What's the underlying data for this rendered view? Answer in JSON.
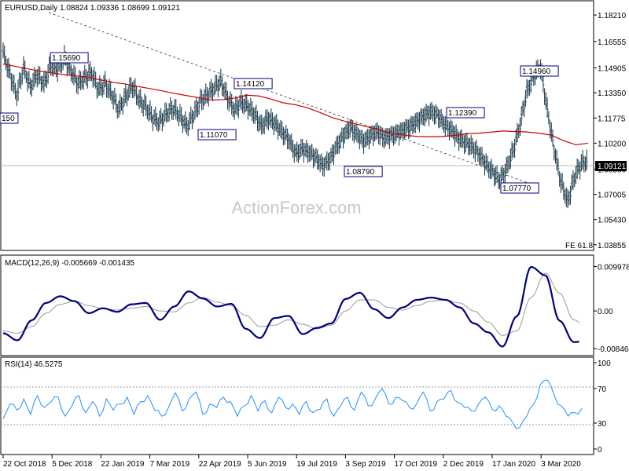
{
  "chart_data": [
    {
      "type": "ohlc",
      "title": "EURUSD,Daily",
      "ohlc_readout": "1.08824 1.09336 1.08699 1.09121",
      "watermark": "ActionForex.com",
      "y_ticks": [
        "1.18210",
        "1.16555",
        "1.14905",
        "1.13350",
        "1.11775",
        "1.10200",
        "1.08580",
        "1.07005",
        "1.05430",
        "1.03855"
      ],
      "last_price_label": "1.09121",
      "fe_label": "FE 61.8",
      "peak_labels": [
        {
          "text": "1.15690",
          "price": 1.1569
        },
        {
          "text": "1.14120",
          "price": 1.1412
        },
        {
          "text": "1.11070",
          "price": 1.1107
        },
        {
          "text": "1.08790",
          "price": 1.0879
        },
        {
          "text": "1.12390",
          "price": 1.1239
        },
        {
          "text": "1.07770",
          "price": 1.0777
        },
        {
          "text": "1.14960",
          "price": 1.1496
        },
        {
          "text": "150",
          "price": 1.1215
        }
      ],
      "series": [
        {
          "name": "price",
          "values": [
            1.1585,
            1.1452,
            1.1318,
            1.1492,
            1.1371,
            1.1448,
            1.1388,
            1.1505,
            1.1482,
            1.1553,
            1.147,
            1.1391,
            1.1427,
            1.1462,
            1.1356,
            1.139,
            1.1322,
            1.123,
            1.1311,
            1.1379,
            1.1289,
            1.1245,
            1.1178,
            1.1152,
            1.1206,
            1.1238,
            1.1189,
            1.1125,
            1.1198,
            1.1282,
            1.132,
            1.1364,
            1.1405,
            1.1302,
            1.1228,
            1.1276,
            1.1249,
            1.1198,
            1.1125,
            1.1178,
            1.114,
            1.1089,
            1.1043,
            1.0955,
            1.0985,
            1.0962,
            1.0928,
            1.0879,
            1.0917,
            1.0998,
            1.1065,
            1.1119,
            1.1074,
            1.1031,
            1.1067,
            1.1091,
            1.1052,
            1.1068,
            1.1082,
            1.1105,
            1.1128,
            1.1161,
            1.1197,
            1.1215,
            1.1189,
            1.1132,
            1.1098,
            1.1048,
            1.1023,
            1.0995,
            1.0951,
            1.0888,
            1.0838,
            1.0787,
            1.086,
            1.0978,
            1.1137,
            1.1343,
            1.1443,
            1.1496,
            1.1226,
            1.0984,
            1.0778,
            1.0654,
            1.0812,
            1.0892,
            1.0912
          ]
        },
        {
          "name": "MA",
          "values": [
            1.1514,
            1.15,
            1.1485,
            1.147,
            1.146,
            1.1448,
            1.144,
            1.1432,
            1.1415,
            1.14,
            1.139,
            1.1375,
            1.1362,
            1.1348,
            1.1332,
            1.1318,
            1.1305,
            1.129,
            1.1292,
            1.1302,
            1.132,
            1.1315,
            1.1295,
            1.1272,
            1.126,
            1.124,
            1.1212,
            1.118,
            1.1158,
            1.114,
            1.112,
            1.11,
            1.108,
            1.107,
            1.1062,
            1.106,
            1.1062,
            1.1068,
            1.1079,
            1.1082,
            1.1089,
            1.1096,
            1.1093,
            1.109,
            1.1082,
            1.107,
            1.1035,
            1.101,
            1.102
          ]
        }
      ],
      "ylim": [
        1.0355,
        1.1895
      ]
    },
    {
      "type": "line",
      "label": "MACD(12,26,9) -0.005669 -0.001435",
      "y_ticks": [
        "0.009978",
        "0.00",
        "-0.008464"
      ],
      "series": [
        {
          "name": "MACD",
          "values": [
            -0.005,
            -0.0066,
            -0.0021,
            0.0018,
            0.0033,
            0.0022,
            -0.0005,
            0.0006,
            -0.0002,
            0.0015,
            0.0018,
            -0.002,
            0.001,
            0.0044,
            0.0028,
            0.001,
            0.0016,
            -0.004,
            -0.0061,
            -0.0016,
            -0.0011,
            -0.0052,
            -0.0038,
            -0.0028,
            0.0027,
            0.0041,
            0.0004,
            -0.0016,
            0.0008,
            0.0025,
            0.003,
            0.0025,
            0.0008,
            -0.0028,
            -0.0048,
            -0.008,
            -0.0012,
            0.0099,
            0.008,
            -0.0022,
            -0.007,
            -0.0066
          ]
        },
        {
          "name": "Signal",
          "values": [
            -0.0045,
            -0.005,
            -0.0035,
            -0.0005,
            0.0015,
            0.0022,
            0.0012,
            0.0005,
            0.0002,
            0.0006,
            0.001,
            0.0,
            -0.0002,
            0.0018,
            0.003,
            0.002,
            0.0012,
            -0.001,
            -0.0035,
            -0.0032,
            -0.002,
            -0.003,
            -0.004,
            -0.0032,
            0.0,
            0.0025,
            0.0025,
            0.0008,
            0.0002,
            0.0012,
            0.0022,
            0.0025,
            0.0018,
            0.0,
            -0.0025,
            -0.0055,
            -0.0045,
            0.003,
            0.0085,
            0.004,
            -0.002,
            -0.004
          ]
        }
      ],
      "ylim": [
        -0.0095,
        0.0106
      ]
    },
    {
      "type": "line",
      "label": "RSI(14) 46.5275",
      "y_ticks": [
        "100",
        "70",
        "30",
        "0"
      ],
      "series": [
        {
          "name": "RSI",
          "values": [
            35,
            52,
            45,
            58,
            40,
            62,
            48,
            55,
            60,
            38,
            50,
            62,
            42,
            55,
            38,
            58,
            45,
            52,
            60,
            40,
            55,
            62,
            45,
            38,
            48,
            65,
            44,
            58,
            66,
            40,
            52,
            48,
            60,
            55,
            38,
            50,
            62,
            44,
            56,
            42,
            60,
            48,
            52,
            40,
            55,
            42,
            46,
            58,
            38,
            50,
            60,
            45,
            66,
            50,
            58,
            70,
            52,
            60,
            56,
            48,
            52,
            66,
            44,
            55,
            58,
            68,
            54,
            48,
            44,
            52,
            60,
            46,
            50,
            38,
            30,
            25,
            38,
            52,
            75,
            80,
            62,
            50,
            38,
            42,
            47
          ]
        }
      ],
      "ylim": [
        0,
        100
      ]
    }
  ],
  "x_axis_labels": [
    "22 Oct 2018",
    "5 Dec 2018",
    "22 Jan 2019",
    "7 Mar 2019",
    "22 Apr 2019",
    "5 Jun 2019",
    "19 Jul 2019",
    "3 Sep 2019",
    "17 Oct 2019",
    "2 Dec 2019",
    "17 Jan 2020",
    "3 Mar 2020"
  ]
}
